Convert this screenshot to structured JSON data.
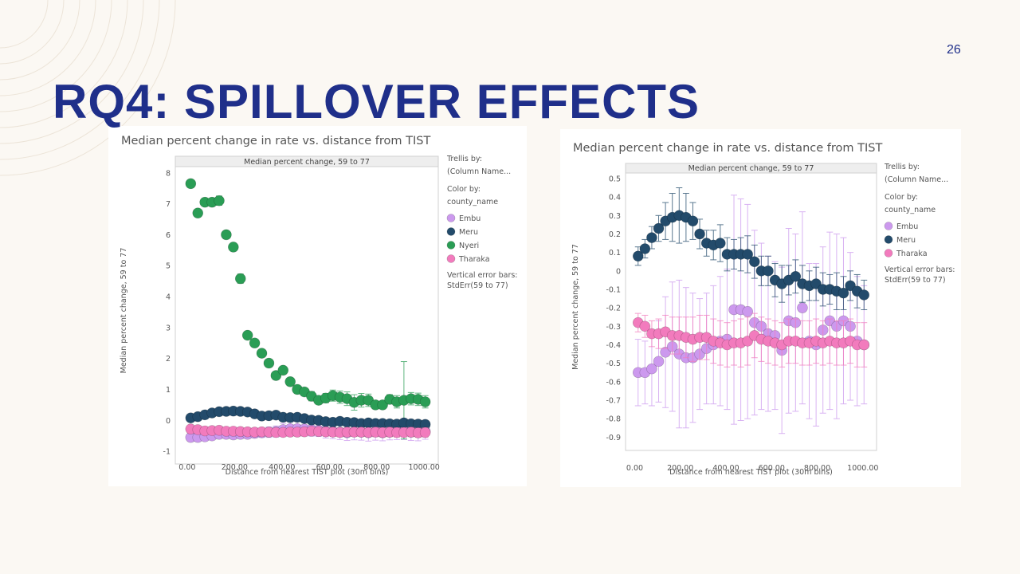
{
  "slide": {
    "page_number": "26",
    "title": "RQ4: SPILLOVER EFFECTS"
  },
  "colors": {
    "Embu": "#cc99ee",
    "Meru": "#234b6b",
    "Nyeri": "#2a9d55",
    "Tharaka": "#f27bbd",
    "title": "#1f2f8a"
  },
  "chart_data": [
    {
      "type": "scatter",
      "title": "Median percent change in rate vs. distance from TIST",
      "panel_header": "Median percent change, 59 to 77",
      "xlabel": "Distance from nearest TIST plot (30m bins)",
      "ylabel": "Median percent change, 59 to 77",
      "xlim": [
        -50,
        1060
      ],
      "ylim": [
        -1.1,
        8.2
      ],
      "xticks": [
        0,
        200,
        400,
        600,
        800,
        1000
      ],
      "xtick_labels": [
        "0.00",
        "200.00",
        "400.00",
        "600.00",
        "800.00",
        "1000.00"
      ],
      "yticks": [
        -1,
        0,
        1,
        2,
        3,
        4,
        5,
        6,
        7,
        8
      ],
      "ytick_labels": [
        "-1",
        "0",
        "1",
        "2",
        "3",
        "4",
        "5",
        "6",
        "7",
        "8"
      ],
      "legend": {
        "trellis_label": "Trellis by:",
        "trellis_value": "(Column Name...",
        "color_label": "Color by:",
        "color_value": "county_name",
        "error_label": "Vertical error bars:",
        "error_value": "StdErr(59 to 77)"
      },
      "series": [
        {
          "name": "Embu",
          "x": [
            15,
            45,
            75,
            105,
            135,
            165,
            195,
            225,
            255,
            285,
            315,
            345,
            375,
            405,
            435,
            465,
            495,
            525,
            555,
            585,
            615,
            645,
            675,
            705,
            735,
            765,
            795,
            825,
            855,
            885,
            915,
            945,
            975,
            1005
          ],
          "y": [
            -0.55,
            -0.55,
            -0.53,
            -0.5,
            -0.45,
            -0.45,
            -0.47,
            -0.45,
            -0.45,
            -0.42,
            -0.4,
            -0.38,
            -0.36,
            -0.3,
            -0.27,
            -0.27,
            -0.28,
            -0.3,
            -0.32,
            -0.35,
            -0.36,
            -0.38,
            -0.4,
            -0.37,
            -0.38,
            -0.4,
            -0.36,
            -0.4,
            -0.38,
            -0.37,
            -0.36,
            -0.38,
            -0.4,
            -0.36
          ],
          "err": [
            0.05,
            0.05,
            0.05,
            0.06,
            0.07,
            0.08,
            0.1,
            0.12,
            0.13,
            0.14,
            0.15,
            0.17,
            0.18,
            0.2,
            0.22,
            0.23,
            0.22,
            0.21,
            0.2,
            0.22,
            0.23,
            0.24,
            0.25,
            0.26,
            0.26,
            0.27,
            0.28,
            0.26,
            0.25,
            0.25,
            0.26,
            0.27,
            0.26,
            0.25
          ]
        },
        {
          "name": "Meru",
          "x": [
            15,
            45,
            75,
            105,
            135,
            165,
            195,
            225,
            255,
            285,
            315,
            345,
            375,
            405,
            435,
            465,
            495,
            525,
            555,
            585,
            615,
            645,
            675,
            705,
            735,
            765,
            795,
            825,
            855,
            885,
            915,
            945,
            975,
            1005
          ],
          "y": [
            0.08,
            0.12,
            0.18,
            0.24,
            0.28,
            0.29,
            0.3,
            0.29,
            0.27,
            0.21,
            0.14,
            0.15,
            0.17,
            0.1,
            0.09,
            0.1,
            0.06,
            0.01,
            0.0,
            -0.04,
            -0.06,
            -0.03,
            -0.06,
            -0.07,
            -0.1,
            -0.08,
            -0.1,
            -0.1,
            -0.11,
            -0.12,
            -0.08,
            -0.11,
            -0.12,
            -0.13
          ],
          "err": [
            0.04,
            0.04,
            0.05,
            0.05,
            0.06,
            0.07,
            0.08,
            0.08,
            0.07,
            0.07,
            0.06,
            0.06,
            0.06,
            0.06,
            0.06,
            0.06,
            0.06,
            0.06,
            0.05,
            0.05,
            0.05,
            0.05,
            0.05,
            0.05,
            0.05,
            0.05,
            0.05,
            0.05,
            0.05,
            0.05,
            0.05,
            0.05,
            0.05,
            0.05
          ]
        },
        {
          "name": "Nyeri",
          "x": [
            15,
            45,
            75,
            105,
            135,
            165,
            195,
            225,
            255,
            285,
            315,
            345,
            375,
            405,
            435,
            465,
            495,
            525,
            555,
            585,
            615,
            645,
            675,
            705,
            735,
            765,
            795,
            825,
            855,
            885,
            915,
            945,
            975,
            1005
          ],
          "y": [
            7.65,
            6.7,
            7.05,
            7.05,
            7.1,
            6.0,
            5.6,
            4.58,
            2.75,
            2.5,
            2.17,
            1.85,
            1.45,
            1.62,
            1.25,
            1.0,
            0.92,
            0.78,
            0.65,
            0.72,
            0.8,
            0.75,
            0.7,
            0.58,
            0.65,
            0.65,
            0.5,
            0.5,
            0.68,
            0.6,
            0.65,
            0.7,
            0.68,
            0.6
          ],
          "err": [
            0.05,
            0.08,
            0.1,
            0.1,
            0.15,
            0.12,
            0.12,
            0.15,
            0.12,
            0.12,
            0.1,
            0.12,
            0.12,
            0.12,
            0.12,
            0.1,
            0.12,
            0.15,
            0.12,
            0.15,
            0.18,
            0.2,
            0.22,
            0.25,
            0.22,
            0.2,
            0.12,
            0.12,
            0.15,
            0.2,
            1.25,
            0.2,
            0.2,
            0.2
          ]
        },
        {
          "name": "Tharaka",
          "x": [
            15,
            45,
            75,
            105,
            135,
            165,
            195,
            225,
            255,
            285,
            315,
            345,
            375,
            405,
            435,
            465,
            495,
            525,
            555,
            585,
            615,
            645,
            675,
            705,
            735,
            765,
            795,
            825,
            855,
            885,
            915,
            945,
            975,
            1005
          ],
          "y": [
            -0.28,
            -0.3,
            -0.34,
            -0.33,
            -0.32,
            -0.35,
            -0.35,
            -0.36,
            -0.37,
            -0.38,
            -0.37,
            -0.38,
            -0.39,
            -0.39,
            -0.38,
            -0.38,
            -0.37,
            -0.35,
            -0.36,
            -0.37,
            -0.38,
            -0.39,
            -0.38,
            -0.38,
            -0.38,
            -0.39,
            -0.38,
            -0.39,
            -0.38,
            -0.39,
            -0.39,
            -0.38,
            -0.4,
            -0.39
          ],
          "err": [
            0.05,
            0.06,
            0.06,
            0.07,
            0.08,
            0.08,
            0.09,
            0.1,
            0.1,
            0.1,
            0.11,
            0.12,
            0.12,
            0.12,
            0.12,
            0.13,
            0.13,
            0.13,
            0.13,
            0.14,
            0.14,
            0.14,
            0.14,
            0.14,
            0.14,
            0.14,
            0.15,
            0.15,
            0.15,
            0.15,
            0.15,
            0.15,
            0.15,
            0.15
          ]
        }
      ]
    },
    {
      "type": "scatter",
      "title": "Median percent change in rate vs. distance from TIST",
      "panel_header": "Median percent change, 59 to 77",
      "xlabel": "Distance from nearest TIST plot (30m bins)",
      "ylabel": "Median percent change, 59 to 77",
      "xlim": [
        -40,
        1060
      ],
      "ylim": [
        -0.92,
        0.53
      ],
      "xticks": [
        0,
        200,
        400,
        600,
        800,
        1000
      ],
      "xtick_labels": [
        "0.00",
        "200.00",
        "400.00",
        "600.00",
        "800.00",
        "1000.00"
      ],
      "yticks": [
        0.5,
        0.4,
        0.3,
        0.2,
        0.1,
        0,
        -0.1,
        -0.2,
        -0.3,
        -0.4,
        -0.5,
        -0.6,
        -0.7,
        -0.8,
        -0.9
      ],
      "ytick_labels": [
        "0.5",
        "0.4",
        "0.3",
        "0.2",
        "0.1",
        "0",
        "-0.1",
        "-0.2",
        "-0.3",
        "-0.4",
        "-0.5",
        "-0.6",
        "-0.7",
        "-0.8",
        "-0.9"
      ],
      "legend": {
        "trellis_label": "Trellis by:",
        "trellis_value": "(Column Name...",
        "color_label": "Color by:",
        "color_value": "county_name",
        "error_label": "Vertical error bars:",
        "error_value": "StdErr(59 to 77)"
      },
      "series": [
        {
          "name": "Embu",
          "x": [
            15,
            45,
            75,
            105,
            135,
            165,
            195,
            225,
            255,
            285,
            315,
            345,
            375,
            405,
            435,
            465,
            495,
            525,
            555,
            585,
            615,
            645,
            675,
            705,
            735,
            765,
            795,
            825,
            855,
            885,
            915,
            945,
            975,
            1005
          ],
          "y": [
            -0.55,
            -0.55,
            -0.53,
            -0.49,
            -0.44,
            -0.41,
            -0.45,
            -0.47,
            -0.47,
            -0.45,
            -0.42,
            -0.4,
            -0.38,
            -0.37,
            -0.21,
            -0.21,
            -0.22,
            -0.28,
            -0.3,
            -0.34,
            -0.35,
            -0.43,
            -0.27,
            -0.28,
            -0.2,
            -0.38,
            -0.4,
            -0.32,
            -0.27,
            -0.3,
            -0.27,
            -0.3,
            -0.38,
            -0.4
          ],
          "err": [
            0.18,
            0.17,
            0.2,
            0.22,
            0.3,
            0.35,
            0.4,
            0.38,
            0.35,
            0.3,
            0.3,
            0.32,
            0.35,
            0.38,
            0.62,
            0.6,
            0.58,
            0.5,
            0.45,
            0.42,
            0.4,
            0.45,
            0.5,
            0.48,
            0.52,
            0.42,
            0.44,
            0.45,
            0.48,
            0.5,
            0.45,
            0.4,
            0.35,
            0.32
          ]
        },
        {
          "name": "Meru",
          "x": [
            15,
            45,
            75,
            105,
            135,
            165,
            195,
            225,
            255,
            285,
            315,
            345,
            375,
            405,
            435,
            465,
            495,
            525,
            555,
            585,
            615,
            645,
            675,
            705,
            735,
            765,
            795,
            825,
            855,
            885,
            915,
            945,
            975,
            1005
          ],
          "y": [
            0.08,
            0.12,
            0.18,
            0.23,
            0.27,
            0.29,
            0.3,
            0.29,
            0.27,
            0.2,
            0.15,
            0.14,
            0.15,
            0.09,
            0.09,
            0.09,
            0.09,
            0.05,
            0.0,
            0.0,
            -0.05,
            -0.07,
            -0.05,
            -0.03,
            -0.07,
            -0.08,
            -0.07,
            -0.1,
            -0.1,
            -0.11,
            -0.12,
            -0.08,
            -0.11,
            -0.13
          ],
          "err": [
            0.05,
            0.05,
            0.06,
            0.07,
            0.1,
            0.13,
            0.15,
            0.13,
            0.1,
            0.08,
            0.07,
            0.08,
            0.1,
            0.09,
            0.08,
            0.09,
            0.1,
            0.09,
            0.08,
            0.08,
            0.09,
            0.1,
            0.08,
            0.09,
            0.1,
            0.08,
            0.09,
            0.09,
            0.08,
            0.1,
            0.09,
            0.08,
            0.09,
            0.08
          ]
        },
        {
          "name": "Tharaka",
          "x": [
            15,
            45,
            75,
            105,
            135,
            165,
            195,
            225,
            255,
            285,
            315,
            345,
            375,
            405,
            435,
            465,
            495,
            525,
            555,
            585,
            615,
            645,
            675,
            705,
            735,
            765,
            795,
            825,
            855,
            885,
            915,
            945,
            975,
            1005
          ],
          "y": [
            -0.28,
            -0.3,
            -0.34,
            -0.34,
            -0.33,
            -0.35,
            -0.35,
            -0.36,
            -0.37,
            -0.36,
            -0.36,
            -0.38,
            -0.39,
            -0.4,
            -0.39,
            -0.39,
            -0.38,
            -0.35,
            -0.37,
            -0.38,
            -0.39,
            -0.4,
            -0.38,
            -0.38,
            -0.39,
            -0.39,
            -0.38,
            -0.39,
            -0.38,
            -0.39,
            -0.39,
            -0.38,
            -0.4,
            -0.4
          ],
          "err": [
            0.05,
            0.06,
            0.07,
            0.08,
            0.09,
            0.1,
            0.1,
            0.11,
            0.12,
            0.12,
            0.12,
            0.12,
            0.12,
            0.12,
            0.12,
            0.13,
            0.13,
            0.12,
            0.12,
            0.12,
            0.12,
            0.12,
            0.12,
            0.12,
            0.12,
            0.12,
            0.12,
            0.12,
            0.12,
            0.12,
            0.12,
            0.12,
            0.12,
            0.12
          ]
        }
      ]
    }
  ]
}
